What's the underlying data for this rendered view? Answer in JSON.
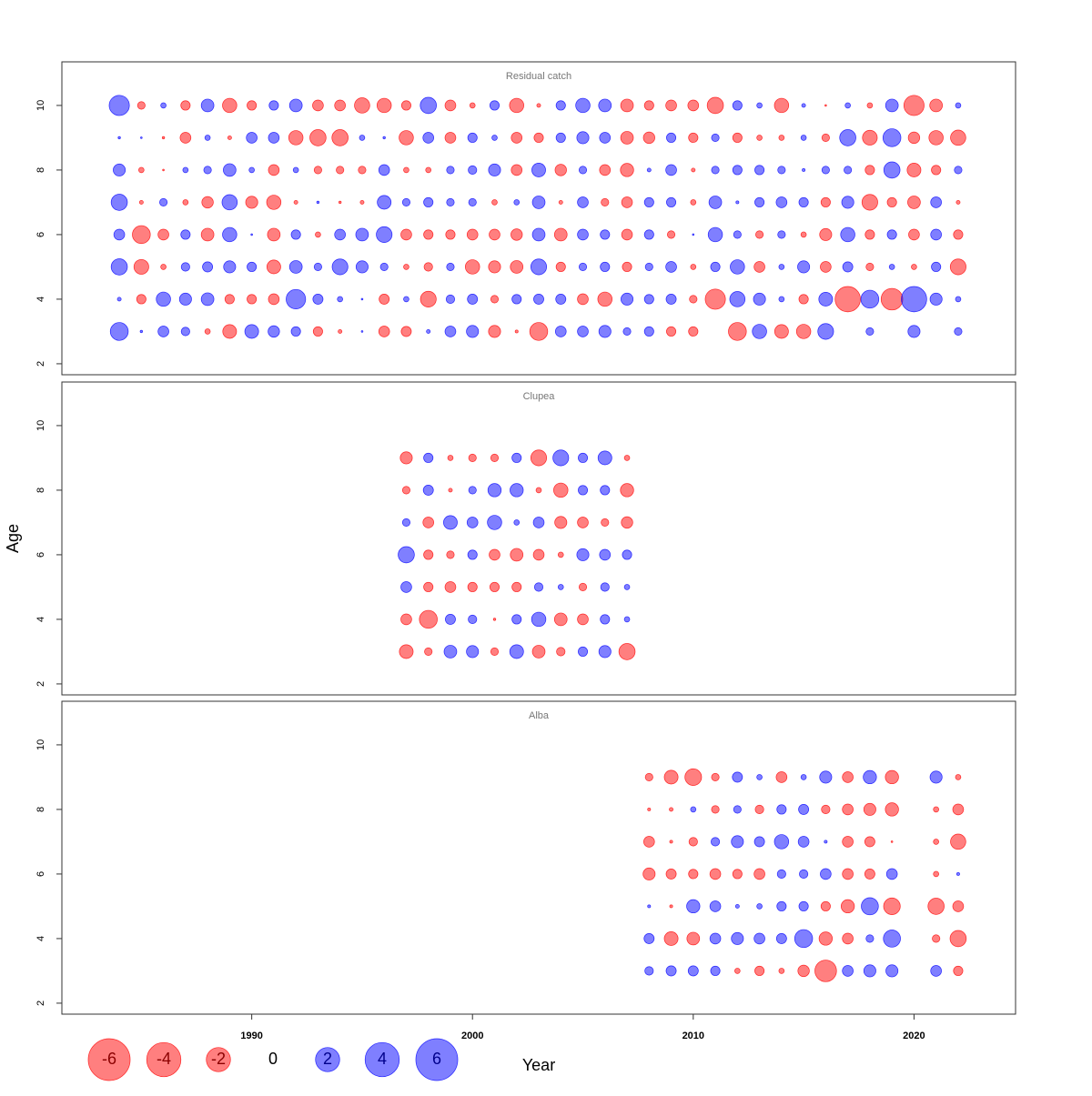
{
  "chart_data": [
    {
      "type": "bubble",
      "title": "Residual catch",
      "x": [
        1984,
        1985,
        1986,
        1987,
        1988,
        1989,
        1990,
        1991,
        1992,
        1993,
        1994,
        1995,
        1996,
        1997,
        1998,
        1999,
        2000,
        2001,
        2002,
        2003,
        2004,
        2005,
        2006,
        2007,
        2008,
        2009,
        2010,
        2011,
        2012,
        2013,
        2014,
        2015,
        2016,
        2017,
        2018,
        2019,
        2020,
        2021,
        2022
      ],
      "y": [
        3,
        4,
        5,
        6,
        7,
        8,
        9,
        10
      ],
      "values": [
        [
          1.1,
          0.02,
          0.4,
          0.25,
          -0.1,
          -0.65,
          0.65,
          0.45,
          0.3,
          -0.3,
          -0.05,
          0.01,
          -0.4,
          -0.35,
          0.05,
          0.4,
          0.5,
          -0.5,
          -0.03,
          -1.1,
          0.4,
          0.4,
          0.5,
          0.2,
          0.3,
          -0.3,
          -0.3,
          null,
          -1.1,
          0.7,
          -0.65,
          -0.7,
          0.85,
          null,
          0.2,
          null,
          0.5,
          null,
          0.2
        ],
        [
          0.05,
          -0.3,
          0.7,
          0.5,
          0.55,
          -0.3,
          -0.3,
          -0.4,
          1.3,
          0.35,
          0.1,
          0.01,
          -0.35,
          0.1,
          -0.85,
          0.25,
          0.35,
          -0.2,
          0.3,
          0.35,
          0.35,
          -0.4,
          -0.7,
          0.5,
          0.3,
          0.35,
          -0.2,
          -1.4,
          0.8,
          0.5,
          0.1,
          -0.3,
          0.65,
          -2.2,
          1.1,
          -1.6,
          2.2,
          0.5,
          0.1
        ],
        [
          0.9,
          -0.75,
          -0.1,
          0.25,
          0.35,
          0.5,
          0.3,
          -0.65,
          0.55,
          0.2,
          0.85,
          0.5,
          0.2,
          -0.1,
          -0.25,
          0.2,
          -0.7,
          -0.5,
          -0.55,
          0.85,
          -0.3,
          0.2,
          0.3,
          -0.3,
          0.2,
          0.4,
          -0.1,
          0.3,
          0.7,
          -0.4,
          0.1,
          0.5,
          -0.4,
          0.35,
          -0.2,
          0.1,
          -0.1,
          0.3,
          -0.85
        ],
        [
          0.4,
          -1.1,
          -0.4,
          0.3,
          -0.55,
          0.7,
          0.01,
          -0.55,
          0.3,
          -0.1,
          0.4,
          0.55,
          0.85,
          -0.4,
          -0.3,
          -0.3,
          -0.4,
          -0.4,
          -0.45,
          0.55,
          -0.55,
          0.4,
          0.3,
          -0.4,
          0.3,
          -0.2,
          0.01,
          0.7,
          0.2,
          -0.2,
          0.2,
          -0.1,
          -0.5,
          0.7,
          -0.3,
          0.3,
          -0.4,
          0.4,
          -0.3
        ],
        [
          0.9,
          -0.05,
          0.2,
          -0.1,
          -0.45,
          0.8,
          -0.5,
          -0.7,
          -0.05,
          0.02,
          -0.02,
          -0.05,
          0.65,
          0.2,
          0.3,
          0.2,
          0.2,
          -0.1,
          0.1,
          0.55,
          -0.05,
          0.4,
          -0.2,
          -0.4,
          0.3,
          0.3,
          -0.1,
          0.55,
          0.03,
          0.3,
          0.4,
          0.3,
          -0.3,
          0.5,
          -0.85,
          -0.3,
          -0.55,
          0.4,
          -0.05
        ],
        [
          0.5,
          -0.1,
          -0.01,
          0.1,
          0.2,
          0.55,
          0.1,
          -0.4,
          0.1,
          -0.2,
          -0.2,
          -0.2,
          0.4,
          -0.1,
          -0.1,
          0.2,
          0.25,
          0.5,
          -0.4,
          0.65,
          -0.45,
          0.2,
          -0.4,
          -0.6,
          0.05,
          0.4,
          -0.05,
          0.2,
          0.3,
          0.3,
          0.2,
          0.03,
          0.2,
          0.2,
          -0.3,
          0.9,
          -0.65,
          -0.3,
          0.2
        ],
        [
          0.02,
          0.01,
          -0.02,
          -0.4,
          0.1,
          -0.05,
          0.4,
          0.4,
          -0.7,
          -0.9,
          -0.9,
          0.1,
          0.02,
          -0.7,
          0.4,
          -0.4,
          0.3,
          0.1,
          -0.4,
          -0.3,
          0.3,
          0.5,
          0.4,
          -0.55,
          -0.45,
          0.3,
          -0.3,
          0.2,
          -0.3,
          -0.1,
          -0.1,
          0.1,
          -0.2,
          0.9,
          -0.75,
          1.1,
          -0.45,
          -0.7,
          -0.8
        ],
        [
          1.4,
          -0.2,
          0.1,
          -0.3,
          0.55,
          -0.7,
          -0.3,
          0.3,
          0.55,
          -0.4,
          -0.4,
          -0.8,
          -0.7,
          -0.3,
          0.9,
          -0.4,
          -0.1,
          0.3,
          -0.7,
          -0.05,
          0.3,
          0.7,
          0.55,
          -0.55,
          -0.3,
          -0.4,
          -0.4,
          -0.9,
          0.3,
          0.1,
          -0.7,
          0.05,
          -0.01,
          0.1,
          -0.1,
          0.55,
          -1.4,
          -0.55,
          0.1
        ]
      ],
      "xlim": [
        1981.4,
        2024.6
      ],
      "ylim": [
        1.66,
        11.35
      ],
      "yticks": [
        2,
        4,
        6,
        8,
        10
      ],
      "colors": {
        "positive": "#0000ff",
        "negative": "#ff0000"
      },
      "opacity": 0.5
    },
    {
      "type": "bubble",
      "title": "Clupea",
      "x": [
        1997,
        1998,
        1999,
        2000,
        2001,
        2002,
        2003,
        2004,
        2005,
        2006,
        2007
      ],
      "y": [
        3,
        4,
        5,
        6,
        7,
        8,
        9
      ],
      "values": [
        [
          -0.65,
          -0.2,
          0.55,
          0.5,
          -0.2,
          0.65,
          -0.55,
          -0.25,
          0.3,
          0.5,
          -0.9
        ],
        [
          -0.4,
          -1.1,
          0.35,
          0.25,
          -0.02,
          0.3,
          0.7,
          -0.55,
          -0.4,
          0.3,
          0.1
        ],
        [
          0.4,
          -0.3,
          -0.4,
          -0.3,
          -0.3,
          -0.3,
          0.25,
          0.1,
          -0.2,
          0.25,
          0.1
        ],
        [
          0.9,
          -0.3,
          -0.2,
          0.3,
          -0.4,
          -0.55,
          -0.4,
          -0.1,
          0.5,
          0.4,
          0.3
        ],
        [
          0.2,
          -0.4,
          0.65,
          0.4,
          0.7,
          0.1,
          0.4,
          -0.5,
          -0.4,
          -0.2,
          -0.45
        ],
        [
          -0.2,
          0.35,
          -0.05,
          0.2,
          0.6,
          0.6,
          -0.1,
          -0.7,
          0.3,
          0.3,
          -0.6
        ],
        [
          -0.5,
          0.3,
          -0.1,
          -0.2,
          -0.2,
          0.3,
          -0.85,
          0.85,
          0.3,
          0.65,
          -0.1
        ]
      ],
      "xlim": [
        1981.4,
        2024.6
      ],
      "ylim": [
        1.66,
        11.35
      ],
      "yticks": [
        2,
        4,
        6,
        8,
        10
      ],
      "ylabel": "Age",
      "colors": {
        "positive": "#0000ff",
        "negative": "#ff0000"
      },
      "opacity": 0.5
    },
    {
      "type": "bubble",
      "title": "Alba",
      "x": [
        2008,
        2009,
        2010,
        2011,
        2012,
        2013,
        2014,
        2015,
        2016,
        2017,
        2018,
        2019,
        2020,
        2021,
        2022
      ],
      "y": [
        3,
        4,
        5,
        6,
        7,
        8,
        9
      ],
      "values": [
        [
          0.25,
          0.35,
          0.35,
          0.3,
          -0.1,
          -0.3,
          -0.1,
          -0.45,
          -1.6,
          0.4,
          0.5,
          0.5,
          null,
          0.4,
          -0.3
        ],
        [
          0.35,
          -0.65,
          -0.55,
          0.4,
          0.5,
          0.4,
          0.35,
          1.1,
          -0.6,
          -0.4,
          0.2,
          1.0,
          null,
          -0.2,
          -0.9
        ],
        [
          0.03,
          -0.03,
          0.6,
          0.4,
          0.05,
          0.1,
          0.3,
          0.3,
          -0.3,
          -0.6,
          1.0,
          -0.95,
          null,
          -0.9,
          -0.4
        ],
        [
          -0.5,
          -0.35,
          -0.3,
          -0.4,
          -0.3,
          -0.4,
          0.25,
          0.25,
          0.4,
          -0.4,
          -0.35,
          0.4,
          null,
          -0.1,
          0.03
        ],
        [
          -0.4,
          -0.03,
          -0.25,
          0.25,
          0.5,
          0.35,
          0.7,
          0.4,
          0.03,
          -0.4,
          -0.35,
          -0.01,
          null,
          -0.1,
          -0.8
        ],
        [
          -0.03,
          -0.05,
          0.1,
          -0.2,
          0.2,
          -0.25,
          0.3,
          0.35,
          -0.25,
          -0.4,
          -0.5,
          -0.6,
          null,
          -0.1,
          -0.4
        ],
        [
          -0.2,
          -0.65,
          -0.95,
          -0.2,
          0.35,
          0.1,
          -0.4,
          0.1,
          0.5,
          -0.4,
          0.6,
          -0.6,
          null,
          0.5,
          -0.1
        ]
      ],
      "xlim": [
        1981.4,
        2024.6
      ],
      "ylim": [
        1.66,
        11.35
      ],
      "yticks": [
        2,
        4,
        6,
        8,
        10
      ],
      "xticks": [
        1990,
        2000,
        2010,
        2020
      ],
      "xlabel": "Year",
      "legend_values": [
        -6,
        -4,
        -2,
        0,
        2,
        4,
        6
      ],
      "colors": {
        "positive": "#0000ff",
        "negative": "#ff0000"
      },
      "opacity": 0.5
    }
  ]
}
